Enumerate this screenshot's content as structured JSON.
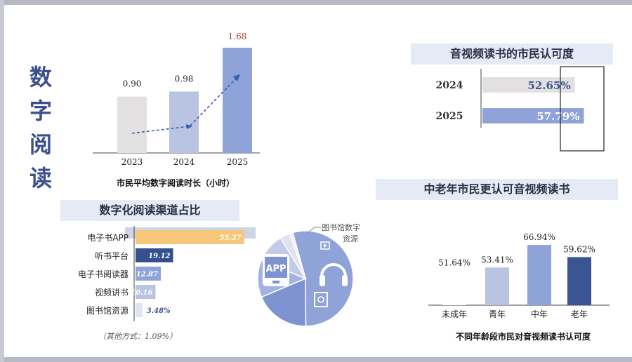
{
  "title_chars": [
    "数",
    "字",
    "阅",
    "读"
  ],
  "chart_data": [
    {
      "type": "bar",
      "id": "avg-duration",
      "caption": "市民平均数字阅读时长（小时）",
      "categories": [
        "2023",
        "2024",
        "2025"
      ],
      "values": [
        0.9,
        0.98,
        1.68
      ],
      "value_labels": [
        "0.90",
        "0.98",
        "1.68"
      ],
      "trend_line": true,
      "colors": [
        "#e3e0e1",
        "#b9c3e2",
        "#8fa3d8"
      ],
      "highlight_color": "#b23a3a"
    },
    {
      "type": "bar",
      "id": "av-recognition",
      "title": "音视频读书的市民认可度",
      "orientation": "horizontal",
      "categories": [
        "2024",
        "2025"
      ],
      "values": [
        52.65,
        57.79
      ],
      "value_labels": [
        "52.65%",
        "57.79%"
      ],
      "colors": [
        "#e3e0e1",
        "#8fa3d8"
      ]
    },
    {
      "type": "bar",
      "id": "age-recognition",
      "title": "中老年市民更认可音视频读书",
      "caption": "不同年龄段市民对音视频读书认可度",
      "categories": [
        "未成年",
        "青年",
        "中年",
        "老年"
      ],
      "values": [
        51.64,
        53.41,
        66.94,
        59.62
      ],
      "value_labels": [
        "51.64%",
        "53.41%",
        "66.94%",
        "59.62%"
      ],
      "colors": [
        "#ffffff",
        "#b9c3e2",
        "#8fa3d8",
        "#3a5494"
      ]
    },
    {
      "type": "bar",
      "id": "channels",
      "title": "数字化阅读渠道占比",
      "orientation": "horizontal",
      "categories": [
        "电子书APP",
        "听书平台",
        "电子书阅读器",
        "视频讲书",
        "图书馆资源"
      ],
      "values": [
        55.27,
        19.12,
        12.87,
        10.16,
        3.48
      ],
      "value_labels": [
        "55.27",
        "19.12",
        "12.87",
        "10.16",
        "3.48%"
      ],
      "colors": [
        "#f6c77a",
        "#34508f",
        "#8fa3d8",
        "#b9c3e2",
        "#dfe3f2"
      ],
      "note": "（其他方式：1.09%）"
    },
    {
      "type": "pie",
      "id": "channels-pie",
      "values": [
        55.27,
        19.12,
        12.87,
        10.16,
        3.48,
        1.09
      ],
      "colors": [
        "#8fa3d8",
        "#7f93d0",
        "#a3b2e0",
        "#c3cbe8",
        "#dfe3f2",
        "#eef0f8"
      ],
      "callout": "图书馆数字资源",
      "icon_names": [
        "app-icon",
        "headphones-icon",
        "ereader-icon",
        "video-icon"
      ],
      "app_label": "APP"
    }
  ]
}
